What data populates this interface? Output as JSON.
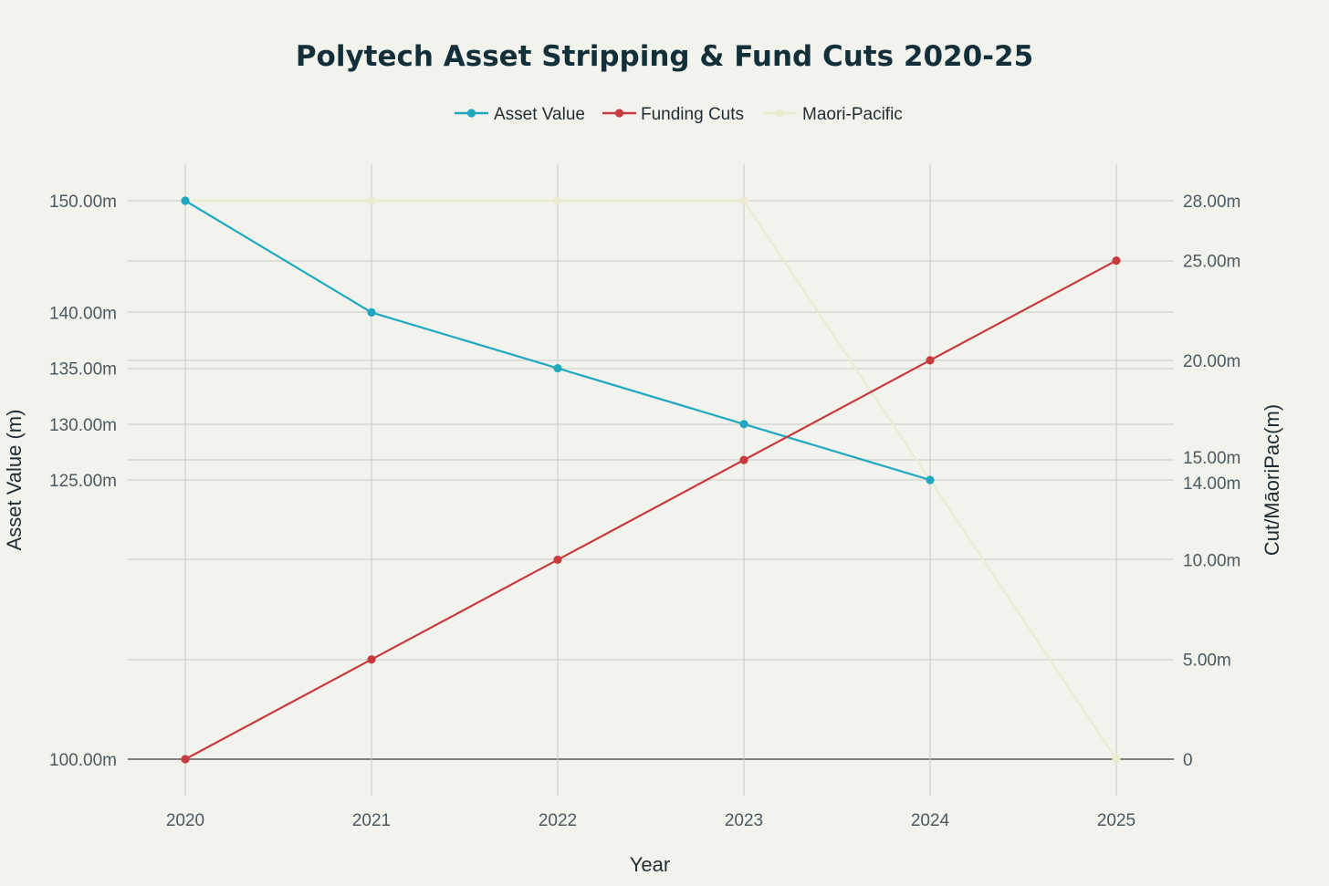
{
  "chart_data": {
    "type": "line",
    "title": "Polytech Asset Stripping & Fund Cuts 2020-25",
    "xlabel": "Year",
    "ylabel": "Asset Value (m)",
    "y2label": "Cut/MāoriPac(m)",
    "x": [
      "2020",
      "2021",
      "2022",
      "2023",
      "2024",
      "2025"
    ],
    "ylim": [
      100,
      150
    ],
    "y2lim": [
      0,
      28
    ],
    "y_ticks": [
      {
        "value": 100,
        "label": "100.00m"
      },
      {
        "value": 125,
        "label": "125.00m"
      },
      {
        "value": 130,
        "label": "130.00m"
      },
      {
        "value": 135,
        "label": "135.00m"
      },
      {
        "value": 140,
        "label": "140.00m"
      },
      {
        "value": 150,
        "label": "150.00m"
      }
    ],
    "y2_ticks": [
      {
        "value": 0,
        "label": "0"
      },
      {
        "value": 5,
        "label": "5.00m"
      },
      {
        "value": 10,
        "label": "10.00m"
      },
      {
        "value": 14,
        "label": "14.00m"
      },
      {
        "value": 15,
        "label": "15.00m"
      },
      {
        "value": 20,
        "label": "20.00m"
      },
      {
        "value": 25,
        "label": "25.00m"
      },
      {
        "value": 28,
        "label": "28.00m"
      }
    ],
    "legend_position": "top-center",
    "grid": true,
    "series": [
      {
        "name": "Asset Value",
        "axis": "left",
        "color": "#1fa8c0",
        "values": [
          150,
          140,
          135,
          130,
          125,
          null
        ]
      },
      {
        "name": "Funding Cuts",
        "axis": "right",
        "color": "#c73a3f",
        "values": [
          0,
          5,
          10,
          15,
          20,
          25
        ]
      },
      {
        "name": "Maori-Pacific",
        "axis": "right",
        "color": "#ecebd2",
        "values": [
          28,
          28,
          28,
          28,
          14,
          0
        ]
      }
    ]
  }
}
